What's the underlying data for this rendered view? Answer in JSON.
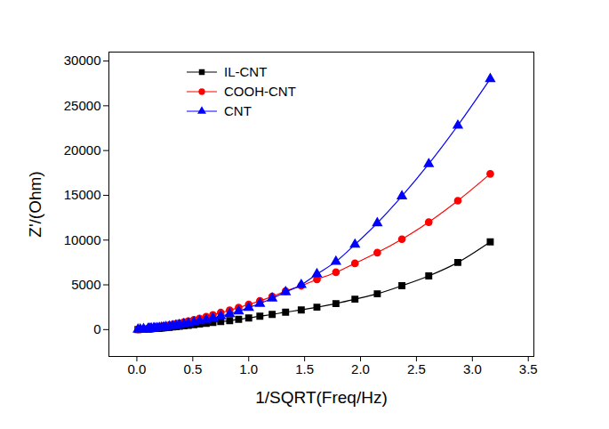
{
  "chart_data": {
    "type": "line",
    "xlabel": "1/SQRT(Freq/Hz)",
    "ylabel": "Z'/(Ohm)",
    "x": [
      3.16,
      2.87,
      2.61,
      2.37,
      2.15,
      1.95,
      1.78,
      1.61,
      1.47,
      1.33,
      1.21,
      1.1,
      1.0,
      0.91,
      0.83,
      0.75,
      0.68,
      0.62,
      0.56,
      0.51,
      0.46,
      0.42,
      0.38,
      0.35,
      0.32,
      0.29,
      0.26,
      0.24,
      0.22,
      0.2,
      0.18,
      0.16,
      0.15,
      0.13,
      0.12,
      0.11,
      0.1,
      0.06,
      0.03,
      0.01
    ],
    "series": [
      {
        "name": "IL-CNT",
        "color": "#000000",
        "marker": "square",
        "line_style": "solid",
        "values": [
          9800,
          7500,
          6000,
          4900,
          4000,
          3400,
          2900,
          2500,
          2200,
          1950,
          1700,
          1500,
          1300,
          1150,
          1000,
          900,
          800,
          700,
          620,
          550,
          480,
          420,
          370,
          330,
          290,
          260,
          230,
          200,
          180,
          160,
          145,
          130,
          115,
          100,
          90,
          80,
          75,
          45,
          25,
          8
        ]
      },
      {
        "name": "COOH-CNT",
        "color": "#ff0000",
        "marker": "circle",
        "line_style": "solid",
        "values": [
          17400,
          14400,
          12000,
          10100,
          8600,
          7400,
          6400,
          5600,
          4900,
          4300,
          3700,
          3200,
          2800,
          2450,
          2150,
          1900,
          1650,
          1450,
          1250,
          1100,
          950,
          830,
          720,
          640,
          560,
          490,
          430,
          380,
          340,
          300,
          270,
          240,
          210,
          190,
          170,
          150,
          130,
          80,
          40,
          15
        ]
      },
      {
        "name": "CNT",
        "color": "#0000ff",
        "marker": "triangle",
        "line_style": "solid",
        "values": [
          28000,
          22800,
          18500,
          14900,
          11900,
          9500,
          7600,
          6200,
          5000,
          4200,
          3500,
          2900,
          2450,
          2050,
          1750,
          1500,
          1280,
          1100,
          950,
          820,
          700,
          610,
          530,
          460,
          400,
          350,
          300,
          260,
          230,
          200,
          180,
          160,
          140,
          120,
          110,
          100,
          90,
          60,
          30,
          10
        ]
      }
    ],
    "xlim": [
      -0.25,
      3.55
    ],
    "xticks": [
      {
        "value": 0,
        "label": "0.0"
      },
      0.5,
      {
        "value": 1,
        "label": "1.0"
      },
      1.5,
      {
        "value": 2,
        "label": "2.0"
      },
      2.5,
      {
        "value": 3,
        "label": "3.0"
      },
      3.5
    ],
    "ylim": [
      -3000,
      31000
    ],
    "yticks": [
      0,
      5000,
      10000,
      15000,
      20000,
      25000,
      30000
    ],
    "grid": false,
    "legend": "top-left"
  }
}
